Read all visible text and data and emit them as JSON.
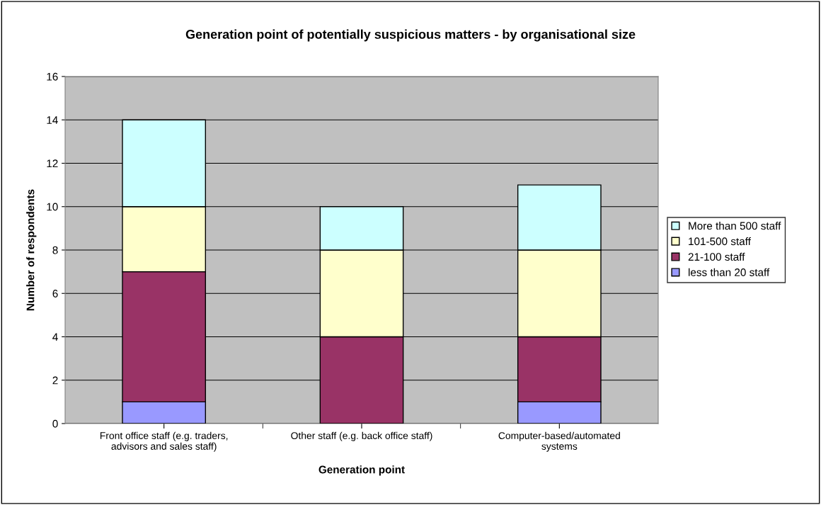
{
  "chart_data": {
    "type": "bar",
    "stacked": true,
    "title": "Generation point of potentially suspicious matters - by organisational size",
    "xlabel": "Generation point",
    "ylabel": "Number of respondents",
    "categories": [
      "Front office staff (e.g. traders,\nadvisors and sales staff)",
      "Other staff (e.g. back office staff)",
      "Computer-based/automated\nsystems"
    ],
    "series": [
      {
        "name": "less than 20 staff",
        "color": "#9999ff",
        "values": [
          1,
          0,
          1
        ]
      },
      {
        "name": "21-100 staff",
        "color": "#993366",
        "values": [
          6,
          4,
          3
        ]
      },
      {
        "name": "101-500 staff",
        "color": "#ffffcc",
        "values": [
          3,
          4,
          4
        ]
      },
      {
        "name": "More than 500 staff",
        "color": "#ccffff",
        "values": [
          4,
          2,
          3
        ]
      }
    ],
    "ylim": [
      0,
      16
    ],
    "yticks": [
      0,
      2,
      4,
      6,
      8,
      10,
      12,
      14,
      16
    ],
    "grid": "y",
    "legend": "right"
  }
}
